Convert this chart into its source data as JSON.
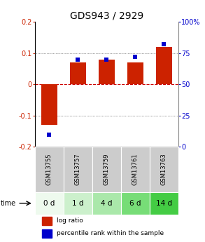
{
  "title": "GDS943 / 2929",
  "samples": [
    "GSM13755",
    "GSM13757",
    "GSM13759",
    "GSM13761",
    "GSM13763"
  ],
  "time_labels": [
    "0 d",
    "1 d",
    "4 d",
    "6 d",
    "14 d"
  ],
  "log_ratios": [
    -0.13,
    0.07,
    0.08,
    0.07,
    0.12
  ],
  "percentile_ranks": [
    10,
    70,
    70,
    72,
    82
  ],
  "ylim_left": [
    -0.2,
    0.2
  ],
  "ylim_right": [
    0,
    100
  ],
  "yticks_left": [
    -0.2,
    -0.1,
    0,
    0.1,
    0.2
  ],
  "yticks_right": [
    0,
    25,
    50,
    75,
    100
  ],
  "bar_color": "#cc2200",
  "point_color": "#0000cc",
  "zero_line_color": "#cc0000",
  "bar_width": 0.55,
  "time_colors": [
    "#eefaee",
    "#ccf0cc",
    "#aae8aa",
    "#77dd77",
    "#44cc44"
  ],
  "sample_bg_color": "#cccccc",
  "title_fontsize": 10,
  "tick_fontsize": 7,
  "label_fontsize": 7
}
